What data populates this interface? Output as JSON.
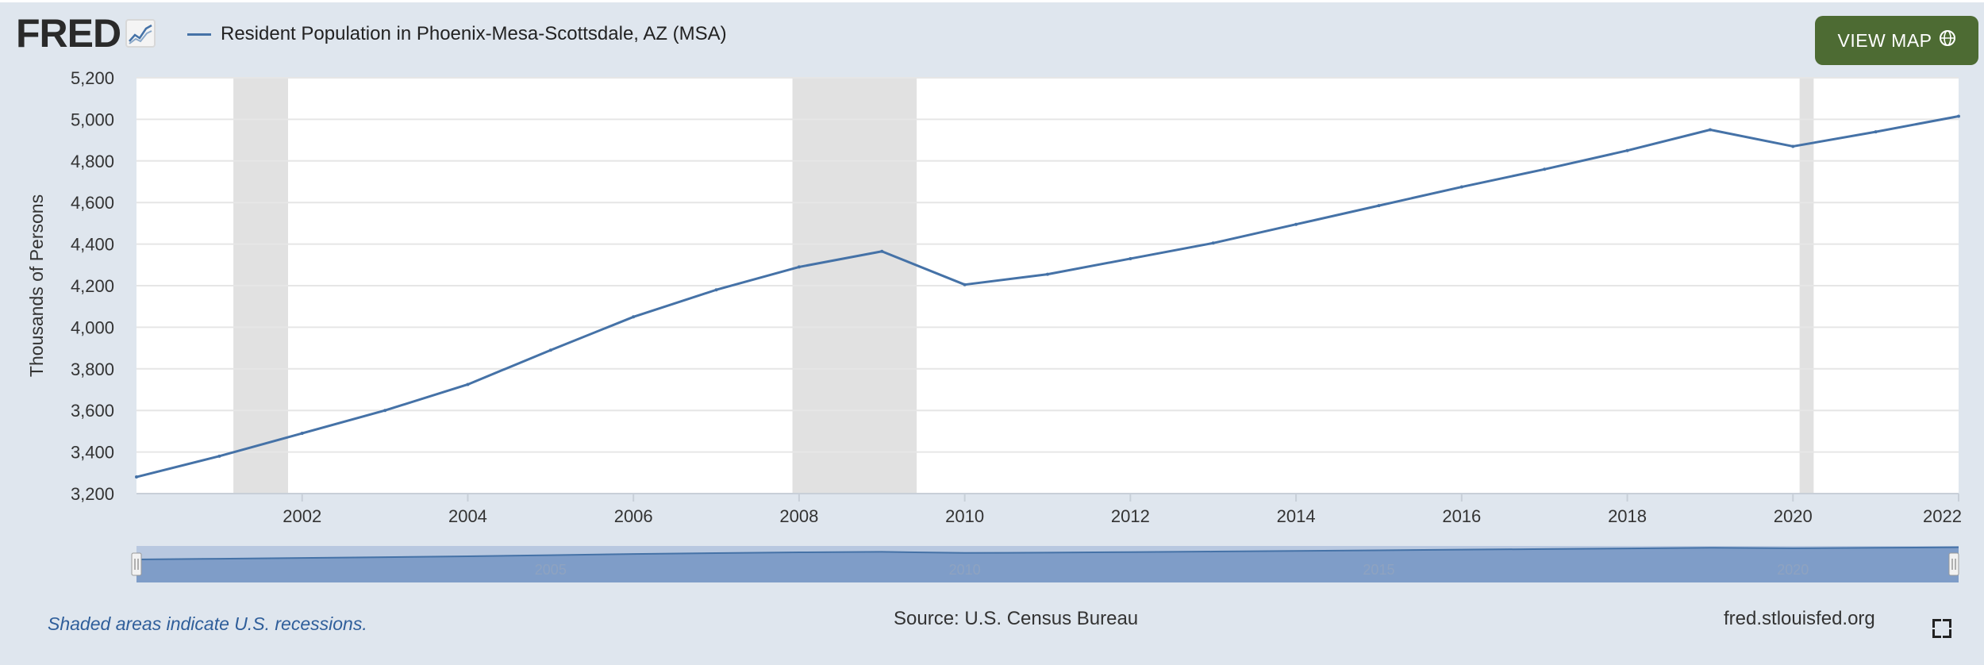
{
  "header": {
    "logo_text": "FRED",
    "legend_label": "Resident Population in Phoenix-Mesa-Scottsdale, AZ (MSA)",
    "view_map_label": "VIEW MAP",
    "view_map_icon": "globe-icon"
  },
  "footer": {
    "recession_note": "Shaded areas indicate U.S. recessions.",
    "source": "Source: U.S. Census Bureau",
    "site": "fred.stlouisfed.org"
  },
  "colors": {
    "series": "#4572a7",
    "recession": "#e1e1e1",
    "button": "#4d6b33",
    "frame": "#dfe6ee"
  },
  "chart_data": {
    "type": "line",
    "ylabel": "Thousands of Persons",
    "ylim": [
      3200,
      5200
    ],
    "yticks": [
      3200,
      3400,
      3600,
      3800,
      4000,
      4200,
      4400,
      4600,
      4800,
      5000,
      5200
    ],
    "ytick_labels": [
      "3,200",
      "3,400",
      "3,600",
      "3,800",
      "4,000",
      "4,200",
      "4,400",
      "4,600",
      "4,800",
      "5,000",
      "5,200"
    ],
    "xlim": [
      2000,
      2022
    ],
    "xticks": [
      2002,
      2004,
      2006,
      2008,
      2010,
      2012,
      2014,
      2016,
      2018,
      2020,
      2022
    ],
    "xtick_labels": [
      "2002",
      "2004",
      "2006",
      "2008",
      "2010",
      "2012",
      "2014",
      "2016",
      "2018",
      "2020",
      "2022"
    ],
    "grid": true,
    "series": [
      {
        "x": [
          2000,
          2001,
          2002,
          2003,
          2004,
          2005,
          2006,
          2007,
          2008,
          2009,
          2010,
          2011,
          2012,
          2013,
          2014,
          2015,
          2016,
          2017,
          2018,
          2019,
          2020,
          2021,
          2022
        ],
        "values": [
          3280,
          3380,
          3490,
          3600,
          3725,
          3890,
          4050,
          4180,
          4290,
          4365,
          4205,
          4255,
          4330,
          4405,
          4495,
          4585,
          4675,
          4760,
          4850,
          4950,
          4870,
          4940,
          5015
        ]
      }
    ],
    "recessions": [
      [
        2001.17,
        2001.83
      ],
      [
        2007.92,
        2009.42
      ],
      [
        2020.08,
        2020.25
      ]
    ],
    "navigator": {
      "tick_labels": [
        "2005",
        "2010",
        "2015",
        "2020"
      ],
      "tick_values": [
        2005,
        2010,
        2015,
        2020
      ]
    }
  }
}
